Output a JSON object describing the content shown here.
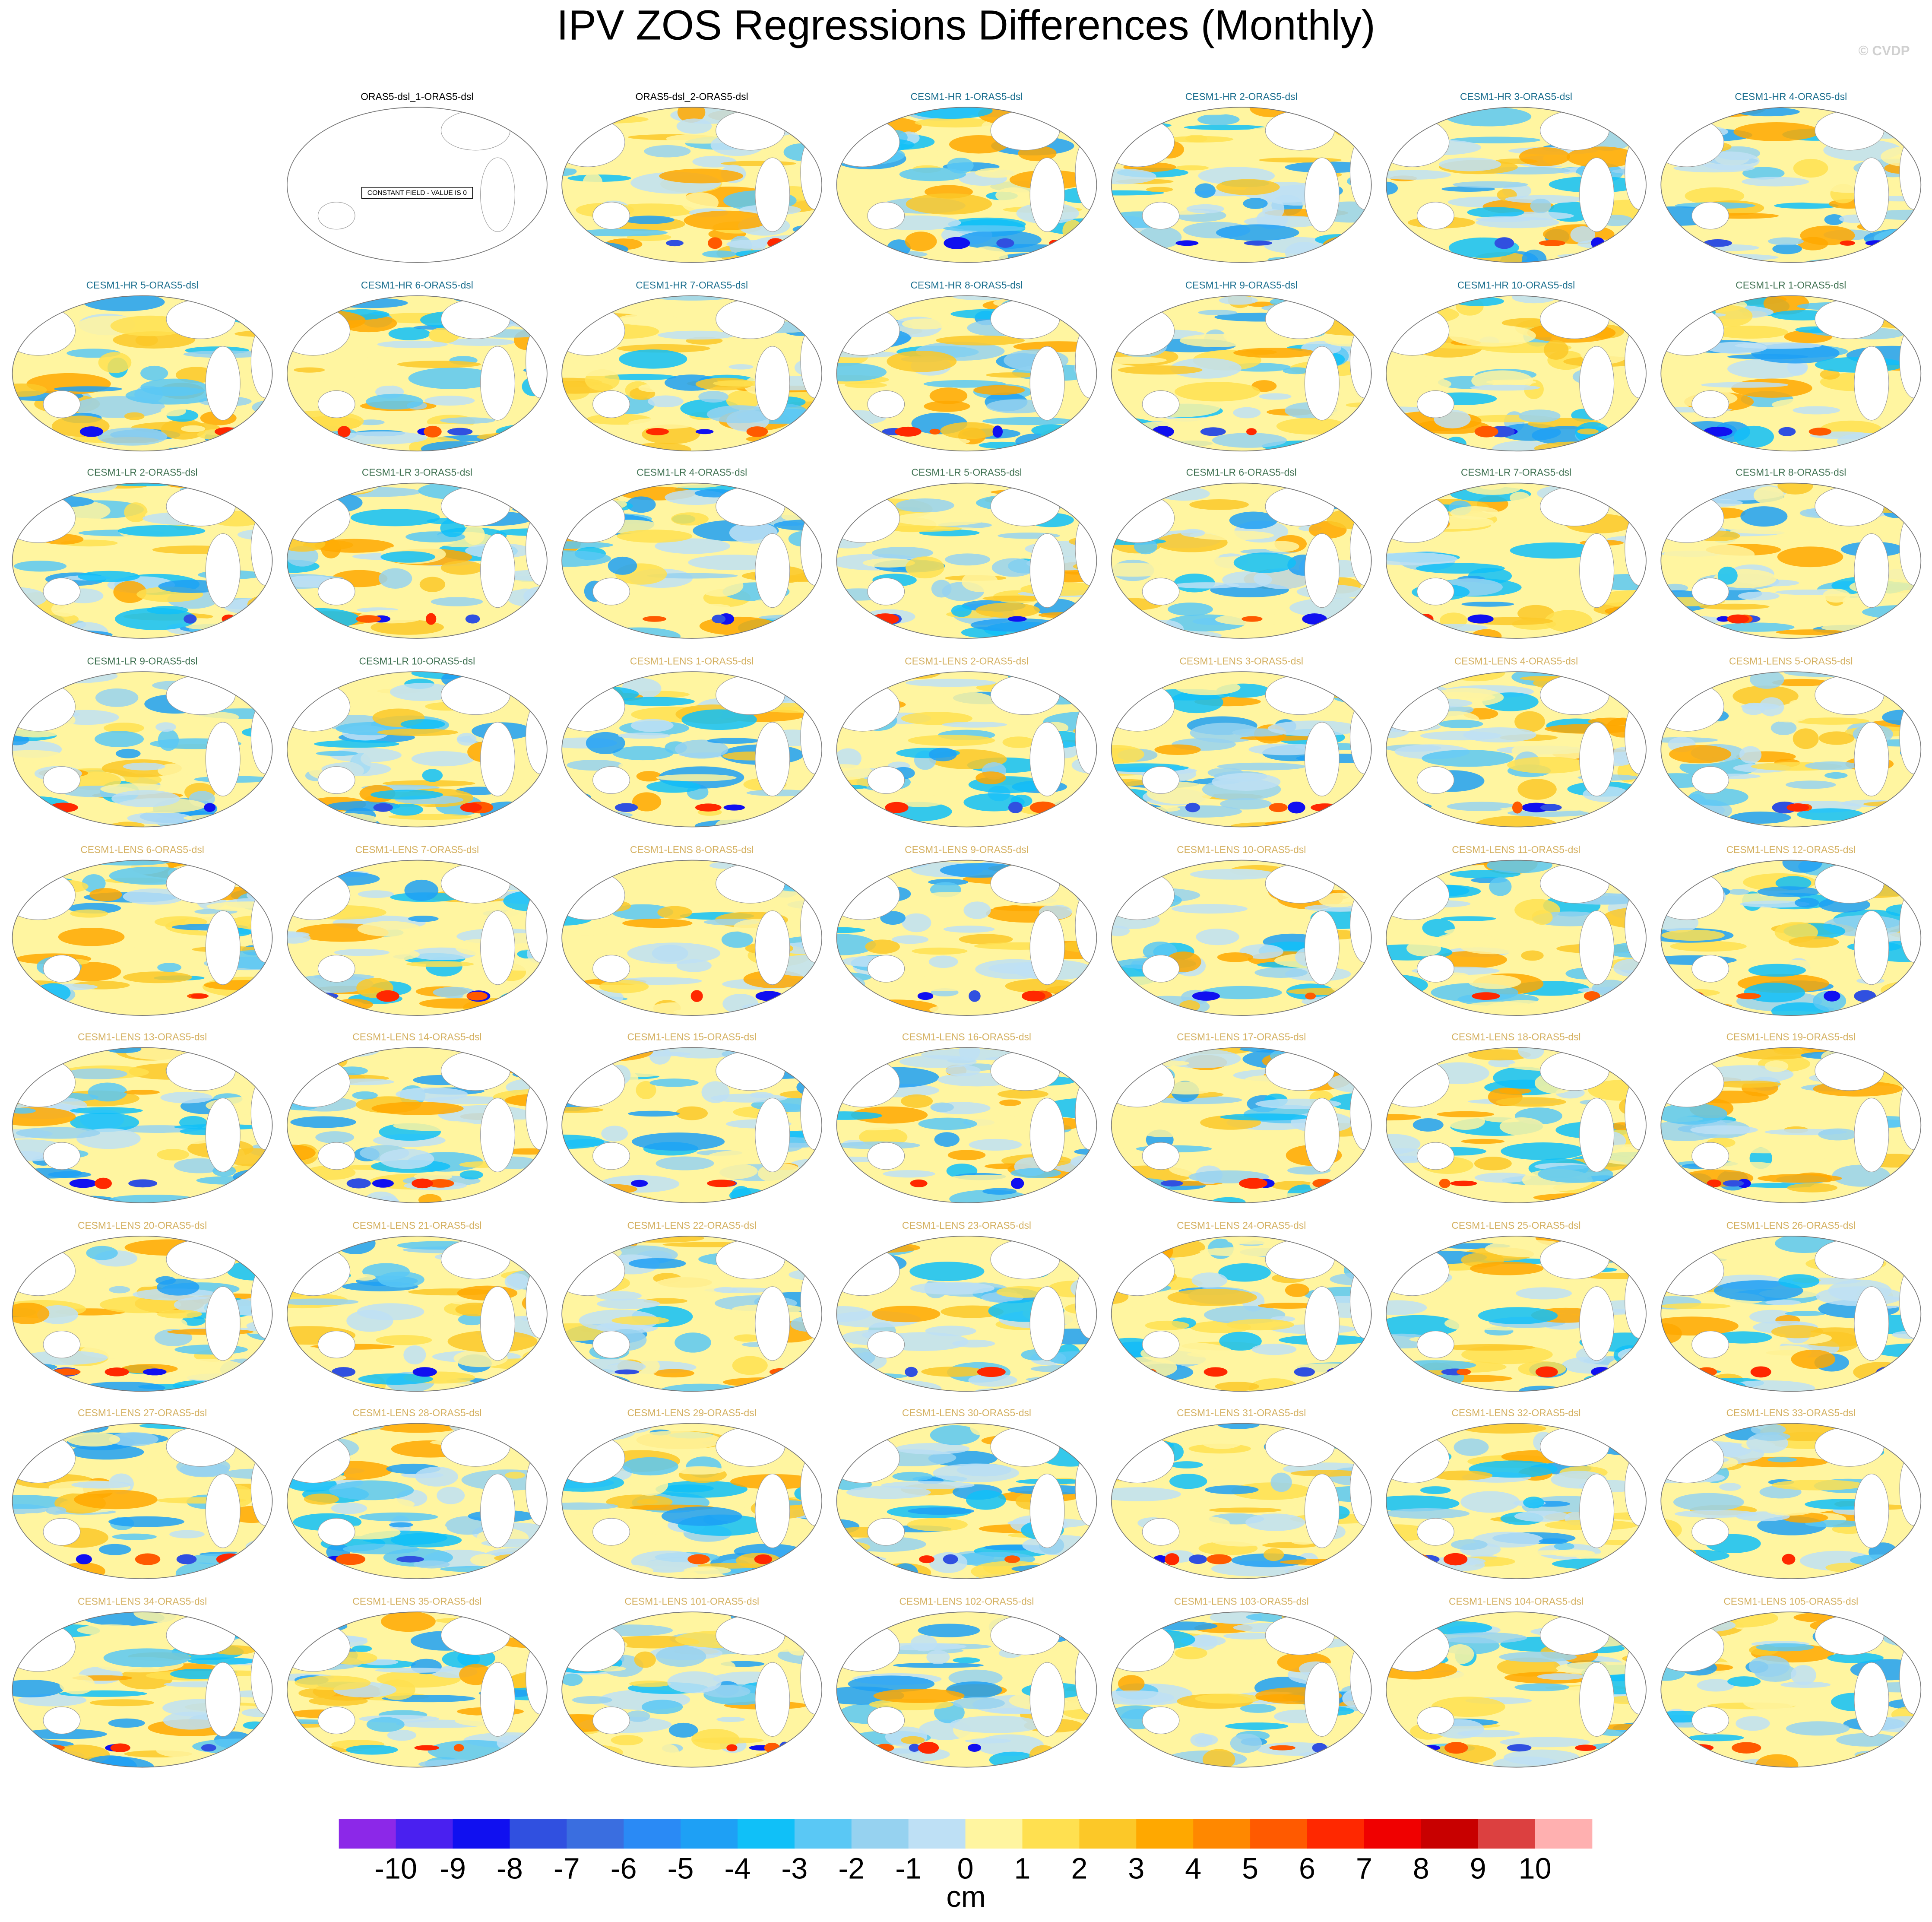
{
  "title": "IPV ZOS Regressions Differences (Monthly)",
  "watermark": "© CVDP",
  "panels": [
    {
      "title": "ORAS5-dsl_1-ORAS5-dsl",
      "color": "#000000",
      "note": "CONSTANT FIELD - VALUE IS 0"
    },
    {
      "title": "ORAS5-dsl_2-ORAS5-dsl",
      "color": "#000000"
    },
    {
      "title": "CESM1-HR 1-ORAS5-dsl",
      "color": "#1a6e8e"
    },
    {
      "title": "CESM1-HR 2-ORAS5-dsl",
      "color": "#1a6e8e"
    },
    {
      "title": "CESM1-HR 3-ORAS5-dsl",
      "color": "#1a6e8e"
    },
    {
      "title": "CESM1-HR 4-ORAS5-dsl",
      "color": "#1a6e8e"
    },
    {
      "title": "CESM1-HR 5-ORAS5-dsl",
      "color": "#1a6e8e"
    },
    {
      "title": "CESM1-HR 6-ORAS5-dsl",
      "color": "#1a6e8e"
    },
    {
      "title": "CESM1-HR 7-ORAS5-dsl",
      "color": "#1a6e8e"
    },
    {
      "title": "CESM1-HR 8-ORAS5-dsl",
      "color": "#1a6e8e"
    },
    {
      "title": "CESM1-HR 9-ORAS5-dsl",
      "color": "#1a6e8e"
    },
    {
      "title": "CESM1-HR 10-ORAS5-dsl",
      "color": "#1a6e8e"
    },
    {
      "title": "CESM1-LR 1-ORAS5-dsl",
      "color": "#3e7050"
    },
    {
      "title": "CESM1-LR 2-ORAS5-dsl",
      "color": "#3e7050"
    },
    {
      "title": "CESM1-LR 3-ORAS5-dsl",
      "color": "#3e7050"
    },
    {
      "title": "CESM1-LR 4-ORAS5-dsl",
      "color": "#3e7050"
    },
    {
      "title": "CESM1-LR 5-ORAS5-dsl",
      "color": "#3e7050"
    },
    {
      "title": "CESM1-LR 6-ORAS5-dsl",
      "color": "#3e7050"
    },
    {
      "title": "CESM1-LR 7-ORAS5-dsl",
      "color": "#3e7050"
    },
    {
      "title": "CESM1-LR 8-ORAS5-dsl",
      "color": "#3e7050"
    },
    {
      "title": "CESM1-LR 9-ORAS5-dsl",
      "color": "#3e7050"
    },
    {
      "title": "CESM1-LR 10-ORAS5-dsl",
      "color": "#3e7050"
    },
    {
      "title": "CESM1-LENS 1-ORAS5-dsl",
      "color": "#d4b060"
    },
    {
      "title": "CESM1-LENS 2-ORAS5-dsl",
      "color": "#d4b060"
    },
    {
      "title": "CESM1-LENS 3-ORAS5-dsl",
      "color": "#d4b060"
    },
    {
      "title": "CESM1-LENS 4-ORAS5-dsl",
      "color": "#d4b060"
    },
    {
      "title": "CESM1-LENS 5-ORAS5-dsl",
      "color": "#d4b060"
    },
    {
      "title": "CESM1-LENS 6-ORAS5-dsl",
      "color": "#d4b060"
    },
    {
      "title": "CESM1-LENS 7-ORAS5-dsl",
      "color": "#d4b060"
    },
    {
      "title": "CESM1-LENS 8-ORAS5-dsl",
      "color": "#d4b060"
    },
    {
      "title": "CESM1-LENS 9-ORAS5-dsl",
      "color": "#d4b060"
    },
    {
      "title": "CESM1-LENS 10-ORAS5-dsl",
      "color": "#d4b060"
    },
    {
      "title": "CESM1-LENS 11-ORAS5-dsl",
      "color": "#d4b060"
    },
    {
      "title": "CESM1-LENS 12-ORAS5-dsl",
      "color": "#d4b060"
    },
    {
      "title": "CESM1-LENS 13-ORAS5-dsl",
      "color": "#d4b060"
    },
    {
      "title": "CESM1-LENS 14-ORAS5-dsl",
      "color": "#d4b060"
    },
    {
      "title": "CESM1-LENS 15-ORAS5-dsl",
      "color": "#d4b060"
    },
    {
      "title": "CESM1-LENS 16-ORAS5-dsl",
      "color": "#d4b060"
    },
    {
      "title": "CESM1-LENS 17-ORAS5-dsl",
      "color": "#d4b060"
    },
    {
      "title": "CESM1-LENS 18-ORAS5-dsl",
      "color": "#d4b060"
    },
    {
      "title": "CESM1-LENS 19-ORAS5-dsl",
      "color": "#d4b060"
    },
    {
      "title": "CESM1-LENS 20-ORAS5-dsl",
      "color": "#d4b060"
    },
    {
      "title": "CESM1-LENS 21-ORAS5-dsl",
      "color": "#d4b060"
    },
    {
      "title": "CESM1-LENS 22-ORAS5-dsl",
      "color": "#d4b060"
    },
    {
      "title": "CESM1-LENS 23-ORAS5-dsl",
      "color": "#d4b060"
    },
    {
      "title": "CESM1-LENS 24-ORAS5-dsl",
      "color": "#d4b060"
    },
    {
      "title": "CESM1-LENS 25-ORAS5-dsl",
      "color": "#d4b060"
    },
    {
      "title": "CESM1-LENS 26-ORAS5-dsl",
      "color": "#d4b060"
    },
    {
      "title": "CESM1-LENS 27-ORAS5-dsl",
      "color": "#d4b060"
    },
    {
      "title": "CESM1-LENS 28-ORAS5-dsl",
      "color": "#d4b060"
    },
    {
      "title": "CESM1-LENS 29-ORAS5-dsl",
      "color": "#d4b060"
    },
    {
      "title": "CESM1-LENS 30-ORAS5-dsl",
      "color": "#d4b060"
    },
    {
      "title": "CESM1-LENS 31-ORAS5-dsl",
      "color": "#d4b060"
    },
    {
      "title": "CESM1-LENS 32-ORAS5-dsl",
      "color": "#d4b060"
    },
    {
      "title": "CESM1-LENS 33-ORAS5-dsl",
      "color": "#d4b060"
    },
    {
      "title": "CESM1-LENS 34-ORAS5-dsl",
      "color": "#d4b060"
    },
    {
      "title": "CESM1-LENS 35-ORAS5-dsl",
      "color": "#d4b060"
    },
    {
      "title": "CESM1-LENS 101-ORAS5-dsl",
      "color": "#d4b060"
    },
    {
      "title": "CESM1-LENS 102-ORAS5-dsl",
      "color": "#d4b060"
    },
    {
      "title": "CESM1-LENS 103-ORAS5-dsl",
      "color": "#d4b060"
    },
    {
      "title": "CESM1-LENS 104-ORAS5-dsl",
      "color": "#d4b060"
    },
    {
      "title": "CESM1-LENS 105-ORAS5-dsl",
      "color": "#d4b060"
    }
  ],
  "colorbar": {
    "levels": [
      -10,
      -9,
      -8,
      -7,
      -6,
      -5,
      -4,
      -3,
      -2,
      -1,
      0,
      1,
      2,
      3,
      4,
      5,
      6,
      7,
      8,
      9,
      10
    ],
    "colors": [
      "#8c28e8",
      "#4a20f0",
      "#1010f0",
      "#3050e0",
      "#3a6ee0",
      "#2a8af5",
      "#1ea0f5",
      "#10c0f8",
      "#5ac8f5",
      "#96d2f0",
      "#bee0f5",
      "#fff5a0",
      "#ffe050",
      "#fcc828",
      "#ffa800",
      "#ff8800",
      "#ff5a00",
      "#ff2800",
      "#f00000",
      "#c80000",
      "#dc4040",
      "#ffb0b0"
    ],
    "unit": "cm"
  }
}
